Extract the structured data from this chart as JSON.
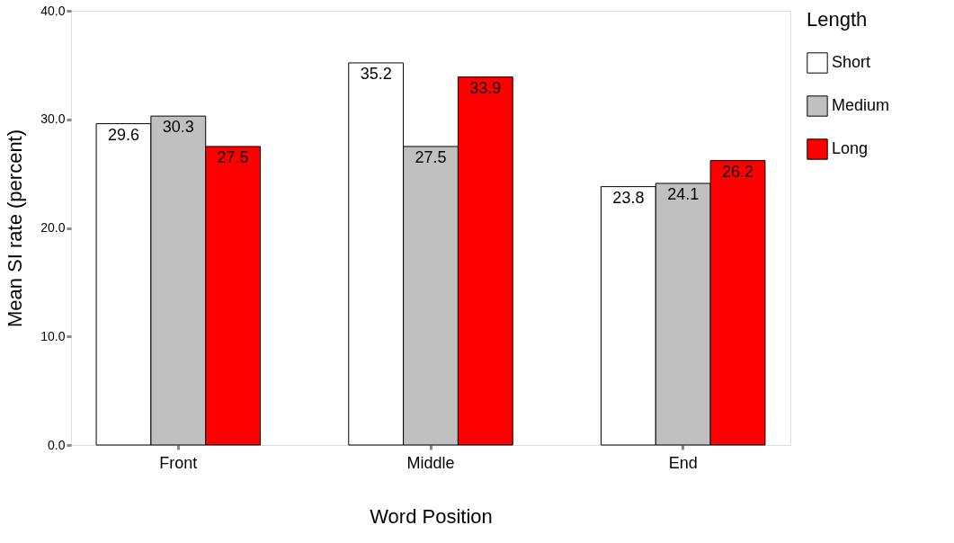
{
  "chart_data": {
    "type": "bar",
    "xlabel": "Word Position",
    "ylabel": "Mean SI rate (percent)",
    "legend_title": "Length",
    "categories": [
      "Front",
      "Middle",
      "End"
    ],
    "series": [
      {
        "name": "Short",
        "color": "#ffffff",
        "values": [
          29.6,
          35.2,
          23.8
        ]
      },
      {
        "name": "Medium",
        "color": "#c0c0c0",
        "values": [
          30.3,
          27.5,
          24.1
        ]
      },
      {
        "name": "Long",
        "color": "#ff0000",
        "values": [
          27.5,
          33.9,
          26.2
        ]
      }
    ],
    "ylim": [
      0,
      40
    ],
    "yticks": [
      {
        "value": 0,
        "label": "0.0"
      },
      {
        "value": 10,
        "label": "10.0"
      },
      {
        "value": 20,
        "label": "20.0"
      },
      {
        "value": 30,
        "label": "30.0"
      },
      {
        "value": 40,
        "label": "40.0"
      }
    ],
    "data_labels": true,
    "grid": false,
    "legend": "right"
  }
}
